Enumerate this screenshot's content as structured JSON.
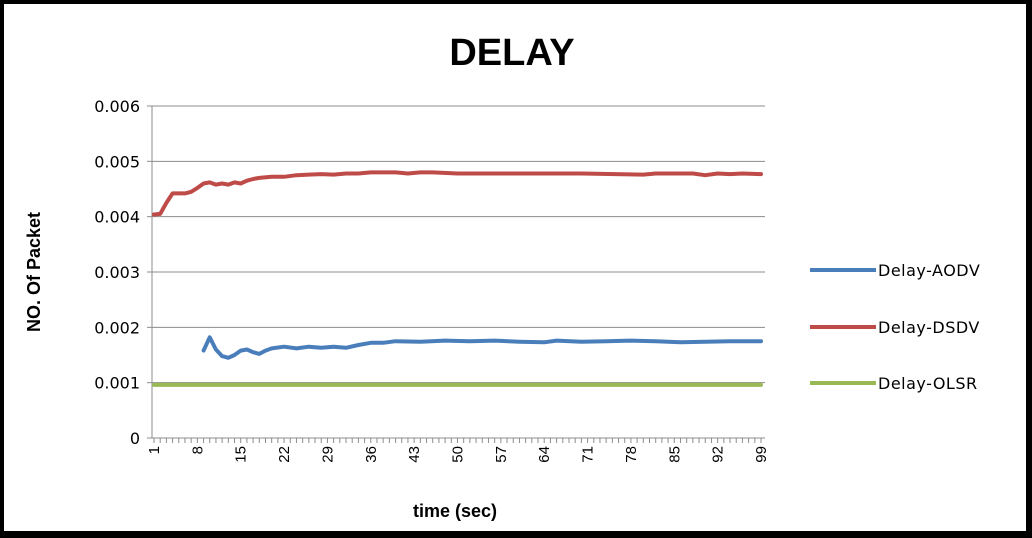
{
  "chart_data": {
    "type": "line",
    "title": "DELAY",
    "xlabel": "time (sec)",
    "ylabel": "NO. Of Packet",
    "xlim": [
      1,
      99
    ],
    "ylim": [
      0,
      0.006
    ],
    "y_ticks": [
      "0",
      "0.001",
      "0.002",
      "0.003",
      "0.004",
      "0.005",
      "0.006"
    ],
    "x_tick_labels": [
      1,
      8,
      15,
      22,
      29,
      36,
      43,
      50,
      57,
      64,
      71,
      78,
      85,
      92,
      99
    ],
    "grid": "horizontal",
    "legend_position": "right",
    "series": [
      {
        "name": "Delay-AODV",
        "color": "#4a7ebb",
        "points": [
          [
            9,
            0.00158
          ],
          [
            10,
            0.00182
          ],
          [
            11,
            0.0016
          ],
          [
            12,
            0.00148
          ],
          [
            13,
            0.00145
          ],
          [
            14,
            0.0015
          ],
          [
            15,
            0.00158
          ],
          [
            16,
            0.0016
          ],
          [
            17,
            0.00155
          ],
          [
            18,
            0.00152
          ],
          [
            19,
            0.00158
          ],
          [
            20,
            0.00162
          ],
          [
            22,
            0.00165
          ],
          [
            24,
            0.00162
          ],
          [
            26,
            0.00165
          ],
          [
            28,
            0.00163
          ],
          [
            30,
            0.00165
          ],
          [
            32,
            0.00163
          ],
          [
            34,
            0.00168
          ],
          [
            36,
            0.00172
          ],
          [
            38,
            0.00172
          ],
          [
            40,
            0.00175
          ],
          [
            44,
            0.00174
          ],
          [
            48,
            0.00176
          ],
          [
            52,
            0.00175
          ],
          [
            56,
            0.00176
          ],
          [
            60,
            0.00174
          ],
          [
            64,
            0.00173
          ],
          [
            66,
            0.00176
          ],
          [
            70,
            0.00174
          ],
          [
            74,
            0.00175
          ],
          [
            78,
            0.00176
          ],
          [
            82,
            0.00175
          ],
          [
            86,
            0.00173
          ],
          [
            90,
            0.00174
          ],
          [
            94,
            0.00175
          ],
          [
            99,
            0.00175
          ]
        ]
      },
      {
        "name": "Delay-DSDV",
        "color": "#be4b48",
        "points": [
          [
            1,
            0.00404
          ],
          [
            2,
            0.00405
          ],
          [
            3,
            0.00425
          ],
          [
            4,
            0.00442
          ],
          [
            5,
            0.00442
          ],
          [
            6,
            0.00442
          ],
          [
            7,
            0.00445
          ],
          [
            8,
            0.00452
          ],
          [
            9,
            0.0046
          ],
          [
            10,
            0.00462
          ],
          [
            11,
            0.00458
          ],
          [
            12,
            0.0046
          ],
          [
            13,
            0.00458
          ],
          [
            14,
            0.00462
          ],
          [
            15,
            0.0046
          ],
          [
            16,
            0.00465
          ],
          [
            17,
            0.00468
          ],
          [
            18,
            0.0047
          ],
          [
            20,
            0.00472
          ],
          [
            22,
            0.00472
          ],
          [
            24,
            0.00475
          ],
          [
            26,
            0.00476
          ],
          [
            28,
            0.00477
          ],
          [
            30,
            0.00476
          ],
          [
            32,
            0.00478
          ],
          [
            34,
            0.00478
          ],
          [
            36,
            0.0048
          ],
          [
            40,
            0.0048
          ],
          [
            42,
            0.00478
          ],
          [
            44,
            0.0048
          ],
          [
            46,
            0.0048
          ],
          [
            50,
            0.00478
          ],
          [
            60,
            0.00478
          ],
          [
            70,
            0.00478
          ],
          [
            80,
            0.00476
          ],
          [
            82,
            0.00478
          ],
          [
            88,
            0.00478
          ],
          [
            90,
            0.00475
          ],
          [
            92,
            0.00478
          ],
          [
            94,
            0.00477
          ],
          [
            96,
            0.00478
          ],
          [
            99,
            0.00477
          ]
        ]
      },
      {
        "name": "Delay-OLSR",
        "color": "#98b954",
        "points": [
          [
            1,
            0.00096
          ],
          [
            99,
            0.00096
          ]
        ]
      }
    ]
  }
}
